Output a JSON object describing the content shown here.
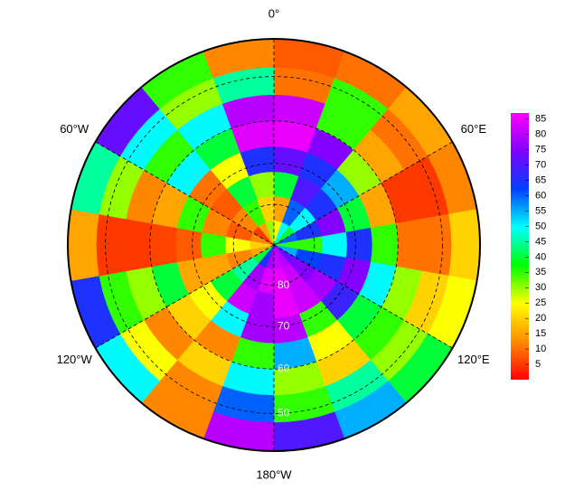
{
  "chart_data": {
    "type": "polar-heatmap",
    "lat_edges": [
      -90,
      -84,
      -78,
      -72,
      -66,
      -60,
      -54,
      -48,
      -42
    ],
    "lon_edges": [
      0,
      20,
      40,
      60,
      80,
      100,
      120,
      140,
      160,
      180,
      200,
      220,
      240,
      260,
      280,
      300,
      320,
      340,
      360
    ],
    "values": [
      [
        25,
        50,
        40,
        60,
        35,
        55,
        72,
        80,
        82,
        78,
        65,
        40,
        15,
        20,
        12,
        5,
        15,
        30
      ],
      [
        15,
        60,
        50,
        65,
        35,
        62,
        75,
        82,
        85,
        84,
        78,
        45,
        12,
        25,
        8,
        12,
        35,
        20
      ],
      [
        40,
        70,
        65,
        75,
        50,
        65,
        78,
        82,
        85,
        78,
        82,
        40,
        15,
        35,
        12,
        8,
        40,
        30
      ],
      [
        72,
        65,
        55,
        40,
        65,
        75,
        68,
        35,
        80,
        78,
        50,
        25,
        15,
        8,
        35,
        10,
        25,
        65
      ],
      [
        85,
        75,
        30,
        15,
        35,
        50,
        40,
        25,
        55,
        35,
        12,
        20,
        40,
        6,
        15,
        50,
        40,
        84
      ],
      [
        82,
        35,
        15,
        5,
        10,
        30,
        35,
        20,
        30,
        50,
        20,
        12,
        30,
        5,
        12,
        35,
        50,
        80
      ],
      [
        10,
        35,
        10,
        5,
        10,
        20,
        30,
        45,
        35,
        60,
        12,
        25,
        35,
        5,
        30,
        50,
        30,
        45
      ],
      [
        8,
        10,
        15,
        12,
        20,
        25,
        40,
        55,
        70,
        80,
        12,
        50,
        65,
        15,
        45,
        72,
        35,
        12
      ]
    ],
    "lat_ticks": [
      {
        "value": -80,
        "label": "80"
      },
      {
        "value": -70,
        "label": "70"
      },
      {
        "value": -60,
        "label": "60"
      },
      {
        "value": -50,
        "label": "50"
      }
    ],
    "lon_ticks": [
      {
        "value": 0,
        "label": "0°"
      },
      {
        "value": 60,
        "label": "60°E"
      },
      {
        "value": 120,
        "label": "120°E"
      },
      {
        "value": 180,
        "label": "180°W"
      },
      {
        "value": -120,
        "label": "120°W"
      },
      {
        "value": -60,
        "label": "60°W"
      }
    ],
    "grid": true,
    "colorbar": {
      "lim": [
        0,
        87
      ],
      "ticks": [
        5,
        10,
        15,
        20,
        25,
        30,
        35,
        40,
        45,
        50,
        55,
        60,
        65,
        70,
        75,
        80,
        85
      ],
      "colormap": [
        "#ff0000",
        "#ff8c00",
        "#ffff00",
        "#00ff00",
        "#00ffff",
        "#0040ff",
        "#8000ff",
        "#ff00ff"
      ]
    }
  }
}
